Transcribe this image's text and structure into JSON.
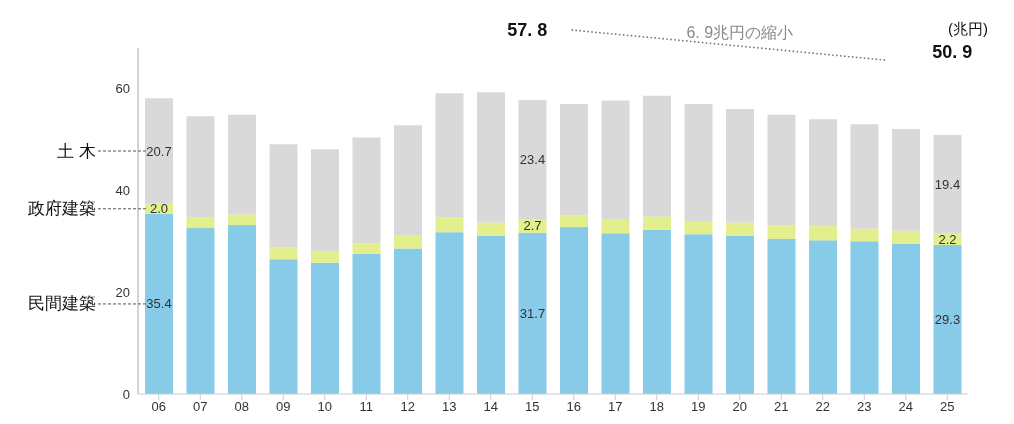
{
  "chart_data": {
    "type": "bar",
    "stacked": true,
    "ylabel": "(兆円)",
    "categories": [
      "06",
      "07",
      "08",
      "09",
      "10",
      "11",
      "12",
      "13",
      "14",
      "15",
      "16",
      "17",
      "18",
      "19",
      "20",
      "21",
      "22",
      "23",
      "24",
      "25"
    ],
    "series": [
      {
        "name": "民間建築",
        "color": "#87cbe8",
        "values": [
          35.4,
          32.6,
          33.2,
          26.5,
          25.8,
          27.5,
          28.6,
          31.8,
          31.1,
          31.7,
          32.8,
          31.6,
          32.3,
          31.4,
          31.1,
          30.5,
          30.2,
          30.0,
          29.5,
          29.3
        ],
        "value_labels": [
          "35.4",
          null,
          null,
          null,
          null,
          null,
          null,
          null,
          null,
          "31.7",
          null,
          null,
          null,
          null,
          null,
          null,
          null,
          null,
          null,
          "29.3"
        ]
      },
      {
        "name": "政府建築",
        "color": "#e3ee8c",
        "values": [
          2.0,
          2.1,
          2.1,
          2.3,
          2.3,
          2.1,
          2.5,
          2.9,
          2.6,
          2.7,
          2.3,
          2.8,
          2.6,
          2.6,
          2.6,
          2.7,
          2.8,
          2.5,
          2.6,
          2.2
        ],
        "value_labels": [
          "2.0",
          null,
          null,
          null,
          null,
          null,
          null,
          null,
          null,
          "2.7",
          null,
          null,
          null,
          null,
          null,
          null,
          null,
          null,
          null,
          "2.2"
        ]
      },
      {
        "name": "土 木",
        "color": "#d9d9d9",
        "values": [
          20.7,
          19.9,
          19.6,
          20.3,
          20.0,
          20.8,
          21.7,
          24.4,
          25.6,
          23.4,
          21.9,
          23.3,
          23.7,
          23.0,
          22.3,
          21.7,
          21.0,
          20.5,
          20.0,
          19.4
        ],
        "value_labels": [
          "20.7",
          null,
          null,
          null,
          null,
          null,
          null,
          null,
          null,
          "23.4",
          null,
          null,
          null,
          null,
          null,
          null,
          null,
          null,
          null,
          "19.4"
        ]
      }
    ],
    "ylim": [
      0,
      68
    ],
    "yticks": [
      0,
      20,
      40,
      60
    ],
    "grid": false,
    "legend": false,
    "annotations": [
      "57. 8",
      "50. 9",
      "6. 9兆円の縮小"
    ]
  }
}
